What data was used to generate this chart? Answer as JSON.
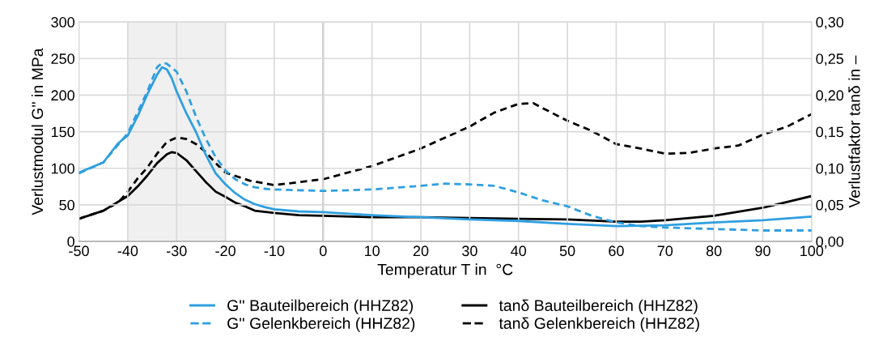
{
  "chart_data": {
    "type": "line",
    "xlabel": "Temperatur T in  °C",
    "ylabel": "Verlustmodul G'' in MPa",
    "y2label": "Verlustfaktor tanδ in –",
    "xlim": [
      -50,
      100
    ],
    "xticks": [
      -50,
      -40,
      -30,
      -20,
      -10,
      0,
      10,
      20,
      30,
      40,
      50,
      60,
      70,
      80,
      90,
      100
    ],
    "ylim": [
      0,
      300
    ],
    "yticks": [
      0,
      50,
      100,
      150,
      200,
      250,
      300
    ],
    "y2lim": [
      0,
      0.3
    ],
    "y2ticks": [
      {
        "value": 0,
        "label": "0,00"
      },
      {
        "value": 0.05,
        "label": "0,05"
      },
      {
        "value": 0.1,
        "label": "0,10"
      },
      {
        "value": 0.15,
        "label": "0,15"
      },
      {
        "value": 0.2,
        "label": "0,20"
      },
      {
        "value": 0.25,
        "label": "0,25"
      },
      {
        "value": 0.3,
        "label": "0,30"
      }
    ],
    "grid": true,
    "legend": "bottom",
    "marker": "none",
    "bands": [
      {
        "axis": "x",
        "from": -40,
        "to": -20,
        "color": "#f0f0f0"
      }
    ],
    "ref_lines": [
      {
        "axis": "x",
        "value": 0,
        "color": "#8c8c8c"
      }
    ],
    "series": [
      {
        "name": "G'' Bauteilbereich (HHZ82)",
        "color": "#2f9fe0",
        "line_style": "solid",
        "x": [
          -50,
          -45,
          -42,
          -40,
          -38,
          -36,
          -34,
          -33,
          -32,
          -31,
          -30,
          -28,
          -26,
          -24,
          -22,
          -20,
          -18,
          -16,
          -14,
          -12,
          -10,
          -5,
          0,
          10,
          20,
          30,
          40,
          50,
          60,
          70,
          80,
          90,
          100
        ],
        "values": [
          94,
          108,
          134,
          145,
          171,
          201,
          228,
          238,
          235,
          223,
          205,
          175,
          149,
          118,
          93,
          78,
          66,
          57,
          51,
          47,
          44,
          41,
          40,
          36,
          33,
          30,
          28,
          24,
          21,
          22,
          26,
          29,
          34
        ]
      },
      {
        "name": "G'' Gelenkbereich (HHZ82)",
        "color": "#2f9fe0",
        "line_style": "dashed",
        "x": [
          -50,
          -45,
          -40,
          -36,
          -34,
          -33,
          -32,
          -30,
          -28,
          -26,
          -24,
          -22,
          -20,
          -18,
          -16,
          -14,
          -12,
          -10,
          -5,
          0,
          10,
          20,
          25,
          30,
          35,
          40,
          45,
          50,
          55,
          60,
          65,
          70,
          80,
          90,
          100
        ],
        "values": [
          93,
          108,
          148,
          205,
          238,
          244,
          243,
          232,
          205,
          170,
          140,
          115,
          97,
          85,
          78,
          74,
          72,
          71,
          70,
          69,
          71,
          76,
          79,
          78,
          76,
          67,
          56,
          48,
          35,
          26,
          21,
          19,
          17,
          15,
          15
        ]
      },
      {
        "name": "tanδ Bauteilbereich (HHZ82)",
        "color": "#000000",
        "line_style": "solid",
        "axis": "y2",
        "x": [
          -50,
          -45,
          -40,
          -38,
          -36,
          -34,
          -32,
          -31,
          -30,
          -28,
          -26,
          -24,
          -22,
          -20,
          -18,
          -16,
          -14,
          -10,
          -5,
          0,
          10,
          20,
          30,
          40,
          50,
          60,
          65,
          70,
          80,
          90,
          100
        ],
        "values": [
          0.031,
          0.042,
          0.062,
          0.075,
          0.09,
          0.107,
          0.119,
          0.122,
          0.121,
          0.111,
          0.096,
          0.081,
          0.068,
          0.061,
          0.053,
          0.048,
          0.042,
          0.039,
          0.036,
          0.035,
          0.033,
          0.033,
          0.032,
          0.031,
          0.03,
          0.027,
          0.027,
          0.029,
          0.035,
          0.046,
          0.062
        ]
      },
      {
        "name": "tanδ Gelenkbereich (HHZ82)",
        "color": "#000000",
        "line_style": "dashed",
        "axis": "y2",
        "x": [
          -50,
          -45,
          -42,
          -40,
          -38,
          -36,
          -34,
          -32,
          -30,
          -28,
          -26,
          -24,
          -22,
          -20,
          -15,
          -10,
          0,
          10,
          20,
          30,
          35,
          40,
          43,
          45,
          50,
          55,
          60,
          65,
          70,
          75,
          80,
          85,
          90,
          95,
          100
        ],
        "values": [
          0.031,
          0.042,
          0.053,
          0.068,
          0.086,
          0.101,
          0.12,
          0.136,
          0.142,
          0.14,
          0.133,
          0.122,
          0.107,
          0.094,
          0.083,
          0.077,
          0.085,
          0.103,
          0.127,
          0.157,
          0.176,
          0.188,
          0.189,
          0.182,
          0.165,
          0.151,
          0.133,
          0.127,
          0.12,
          0.121,
          0.127,
          0.131,
          0.146,
          0.157,
          0.174
        ]
      }
    ]
  }
}
